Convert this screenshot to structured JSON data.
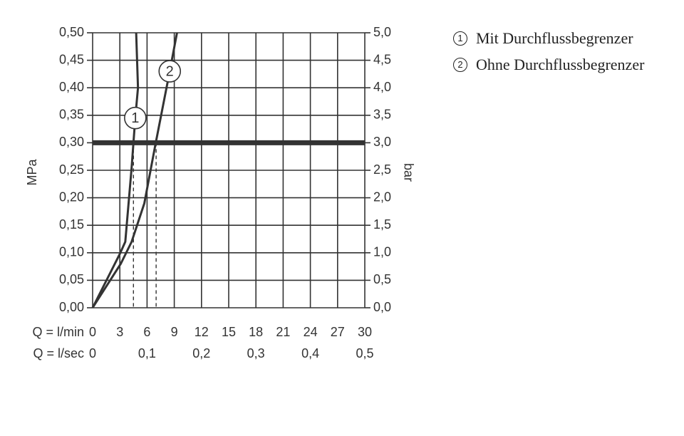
{
  "chart_data": {
    "type": "line",
    "ylabel": "MPa",
    "y2label": "bar",
    "xlabel": "Q = l/min",
    "x2label": "Q = l/sec",
    "xlim": [
      0,
      30
    ],
    "xticks": [
      0,
      3,
      6,
      9,
      12,
      15,
      18,
      21,
      24,
      27,
      30
    ],
    "x2lim": [
      0,
      0.5
    ],
    "x2ticks": [
      0,
      {
        "value": 0.1,
        "label": "0,1"
      },
      {
        "value": 0.2,
        "label": "0,2"
      },
      {
        "value": 0.3,
        "label": "0,3"
      },
      {
        "value": 0.4,
        "label": "0,4"
      },
      {
        "value": 0.5,
        "label": "0,5"
      }
    ],
    "ylim": [
      0,
      0.5
    ],
    "yticks": [
      {
        "value": 0,
        "label": "0,00"
      },
      {
        "value": 0.05,
        "label": "0,05"
      },
      {
        "value": 0.1,
        "label": "0,10"
      },
      {
        "value": 0.15,
        "label": "0,15"
      },
      {
        "value": 0.2,
        "label": "0,20"
      },
      {
        "value": 0.25,
        "label": "0,25"
      },
      {
        "value": 0.3,
        "label": "0,30"
      },
      {
        "value": 0.35,
        "label": "0,35"
      },
      {
        "value": 0.4,
        "label": "0,40"
      },
      {
        "value": 0.45,
        "label": "0,45"
      },
      {
        "value": 0.5,
        "label": "0,50"
      }
    ],
    "y2lim": [
      0,
      5
    ],
    "y2ticks": [
      {
        "value": 0,
        "label": "0,0"
      },
      {
        "value": 0.5,
        "label": "0,5"
      },
      {
        "value": 1,
        "label": "1,0"
      },
      {
        "value": 1.5,
        "label": "1,5"
      },
      {
        "value": 2,
        "label": "2,0"
      },
      {
        "value": 2.5,
        "label": "2,5"
      },
      {
        "value": 3,
        "label": "3,0"
      },
      {
        "value": 3.5,
        "label": "3,5"
      },
      {
        "value": 4,
        "label": "4,0"
      },
      {
        "value": 4.5,
        "label": "4,5"
      },
      {
        "value": 5,
        "label": "5,0"
      }
    ],
    "grid": true,
    "highlight_y": 0.3,
    "series": [
      {
        "name": "Mit Durchflussbegrenzer",
        "marker": "1",
        "color": "#333333",
        "x": [
          0,
          3.0,
          3.6,
          4.3,
          4.7,
          5.0,
          4.8
        ],
        "values": [
          0,
          0.098,
          0.12,
          0.255,
          0.345,
          0.4,
          0.5
        ],
        "reference_x": 4.5
      },
      {
        "name": "Ohne Durchflussbegrenzer",
        "marker": "2",
        "color": "#333333",
        "x": [
          0,
          3.1,
          4.3,
          5.7,
          6.9,
          8.5,
          9.3
        ],
        "values": [
          0,
          0.08,
          0.12,
          0.19,
          0.295,
          0.43,
          0.5
        ],
        "reference_x": 7.0
      }
    ]
  }
}
